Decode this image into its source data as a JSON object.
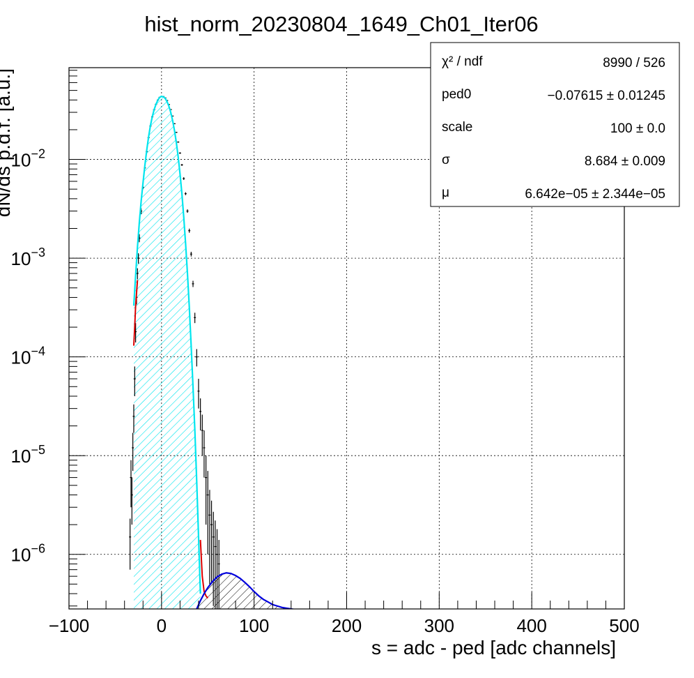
{
  "chart_data": {
    "type": "line",
    "title": "hist_norm_20230804_1649_Ch01_Iter06",
    "xlabel": "s = adc - ped [adc channels]",
    "ylabel": "dN/ds p.d.f. [a.u.]",
    "x_scale": "linear",
    "y_scale": "log",
    "xlim": [
      -100,
      500
    ],
    "ylim": [
      2.8e-07,
      0.085
    ],
    "x_ticks": [
      -100,
      0,
      100,
      200,
      300,
      400,
      500
    ],
    "x_tick_labels": [
      "−100",
      "0",
      "100",
      "200",
      "300",
      "400",
      "500"
    ],
    "y_ticks": [
      1e-06,
      1e-05,
      0.0001,
      0.001,
      0.01
    ],
    "y_tick_labels": [
      {
        "base": "10",
        "exp": "−6"
      },
      {
        "base": "10",
        "exp": "−5"
      },
      {
        "base": "10",
        "exp": "−4"
      },
      {
        "base": "10",
        "exp": "−3"
      },
      {
        "base": "10",
        "exp": "−2"
      }
    ],
    "grid": true,
    "series": [
      {
        "role": "pedestal-gaussian",
        "color": "#00e5ee",
        "fill": "hatched-cyan",
        "x": [
          -30,
          -28,
          -26,
          -24,
          -22,
          -20,
          -18,
          -16,
          -14,
          -12,
          -10,
          -8,
          -6,
          -4,
          -2,
          0,
          2,
          4,
          6,
          8,
          10,
          12,
          14,
          16,
          18,
          20,
          22,
          24,
          26,
          28,
          30,
          32,
          34,
          36,
          38,
          40,
          42
        ],
        "y": [
          0.00033,
          0.00067,
          0.0013,
          0.0023,
          0.0038,
          0.0058,
          0.0087,
          0.0124,
          0.0169,
          0.022,
          0.0271,
          0.0319,
          0.0362,
          0.0399,
          0.0425,
          0.0435,
          0.0431,
          0.0414,
          0.0384,
          0.0345,
          0.0298,
          0.0247,
          0.0196,
          0.0148,
          0.0106,
          0.0071,
          0.0045,
          0.0026,
          0.0014,
          0.0007,
          0.00032,
          0.00013,
          5e-05,
          1.8e-05,
          5.5e-06,
          1.5e-06,
          4e-07
        ]
      },
      {
        "role": "total-fit",
        "color": "#dd0000",
        "x": [
          -30,
          -29,
          -28,
          -26,
          42,
          44,
          46,
          48,
          50
        ],
        "y": [
          0.00013,
          0.0002,
          0.00033,
          0.0006,
          1.4e-06,
          6e-07,
          4.2e-07,
          3.8e-07,
          3.6e-07
        ]
      },
      {
        "role": "single-photoelectron",
        "color": "#0000dd",
        "fill": "hatched-black",
        "x": [
          38,
          42,
          46,
          50,
          55,
          60,
          65,
          70,
          75,
          80,
          85,
          90,
          95,
          100,
          105,
          110,
          115,
          120,
          125,
          130,
          135,
          140,
          145,
          150
        ],
        "y": [
          2.8e-07,
          3.4e-07,
          4e-07,
          4.6e-07,
          5.3e-07,
          5.9e-07,
          6.3e-07,
          6.5e-07,
          6.4e-07,
          6.1e-07,
          5.7e-07,
          5.2e-07,
          4.7e-07,
          4.2e-07,
          3.8e-07,
          3.5e-07,
          3.3e-07,
          3.1e-07,
          3e-07,
          2.9e-07,
          2.85e-07,
          2.8e-07,
          2.75e-07,
          2.7e-07
        ]
      },
      {
        "role": "data-points",
        "color": "#000000",
        "x": [
          -34,
          -33,
          -32,
          -31,
          -30,
          -29,
          -28,
          -27,
          -26,
          -25,
          -24,
          -22,
          -20,
          -18,
          -16,
          -14,
          -12,
          -10,
          -8,
          -6,
          -4,
          -2,
          0,
          2,
          4,
          6,
          8,
          10,
          12,
          14,
          16,
          18,
          20,
          22,
          24,
          26,
          28,
          30,
          32,
          34,
          36,
          38,
          40,
          42,
          44,
          46,
          48,
          50,
          52,
          54,
          56,
          58,
          60,
          62
        ],
        "y": [
          1.5e-06,
          6e-06,
          4e-06,
          1.2e-05,
          2.5e-05,
          6e-05,
          0.00018,
          0.0004,
          0.0007,
          0.001,
          0.0016,
          0.003,
          0.0052,
          0.0082,
          0.012,
          0.0166,
          0.0218,
          0.027,
          0.0318,
          0.0362,
          0.0399,
          0.0426,
          0.0436,
          0.0434,
          0.042,
          0.0395,
          0.036,
          0.032,
          0.0275,
          0.023,
          0.0188,
          0.015,
          0.0116,
          0.0088,
          0.0064,
          0.0045,
          0.003,
          0.0019,
          0.0011,
          0.00055,
          0.00025,
          0.0001,
          4.5e-05,
          2.8e-05,
          1.8e-05,
          1.2e-05,
          6e-06,
          4e-06,
          2.5e-06,
          2e-06,
          1.5e-06,
          1.2e-06,
          1e-06,
          8e-07
        ],
        "err": [
          8e-07,
          3e-06,
          2e-06,
          5e-06,
          8e-06,
          2e-05,
          4e-05,
          6e-05,
          9e-05,
          0.00012,
          0.00015,
          0.0002,
          0.0002,
          0.0002,
          0.0002,
          0.0002,
          0.0002,
          0.0002,
          0.0002,
          0.0002,
          0.0002,
          0.0002,
          0.0002,
          0.0002,
          0.0002,
          0.0002,
          0.0002,
          0.0002,
          0.0002,
          0.0002,
          0.0002,
          0.0002,
          0.0002,
          0.0002,
          0.0002,
          0.00015,
          0.00012,
          9e-05,
          6e-05,
          4e-05,
          3e-05,
          2e-05,
          1.5e-05,
          1e-05,
          8e-06,
          6e-06,
          4e-06,
          3e-06,
          2e-06,
          1.5e-06,
          1.2e-06,
          1e-06,
          8e-07,
          6e-07
        ]
      }
    ],
    "stats": [
      {
        "label": "χ² / ndf",
        "value": "8990 / 526"
      },
      {
        "label": "ped0",
        "value": "−0.07615  ± 0.01245"
      },
      {
        "label": "scale",
        "value": "100  ± 0.0"
      },
      {
        "label": "σ",
        "value": "8.684  ± 0.009"
      },
      {
        "label": "μ",
        "value": "6.642e−05 ± 2.344e−05"
      }
    ]
  }
}
